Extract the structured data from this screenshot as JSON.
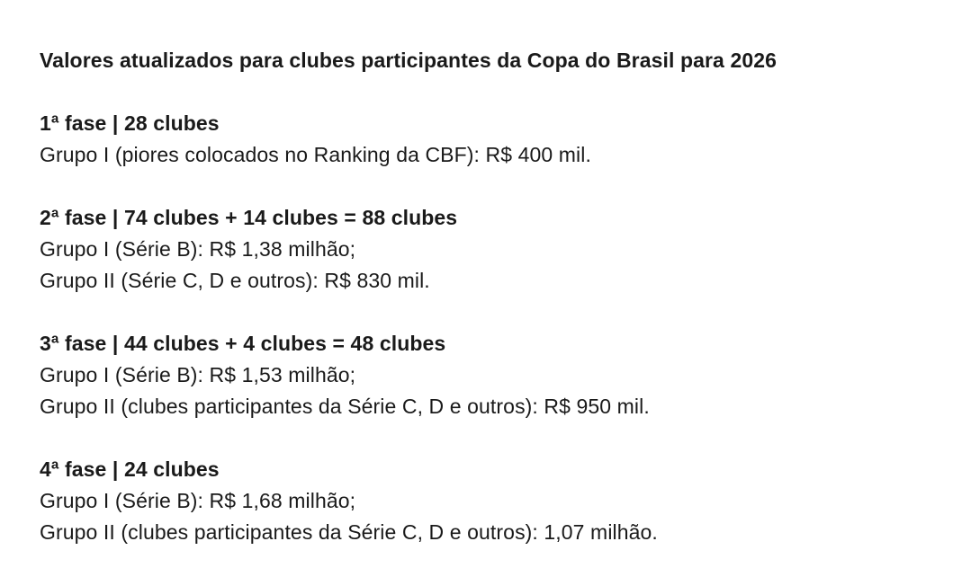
{
  "page": {
    "background_color": "#ffffff",
    "text_color": "#1a1a1a"
  },
  "document": {
    "title": "Valores atualizados para clubes participantes da Copa do Brasil para 2026",
    "sections": [
      {
        "heading": "1ª fase | 28 clubes",
        "lines": [
          "Grupo I (piores colocados no Ranking da CBF): R$ 400 mil."
        ]
      },
      {
        "heading": "2ª fase | 74 clubes + 14 clubes = 88 clubes",
        "lines": [
          "Grupo I (Série B): R$ 1,38 milhão;",
          "Grupo II (Série C, D e outros): R$ 830 mil."
        ]
      },
      {
        "heading": "3ª fase | 44 clubes + 4 clubes = 48 clubes",
        "lines": [
          "Grupo I (Série B): R$ 1,53 milhão;",
          "Grupo II (clubes participantes da Série C, D e outros): R$ 950 mil."
        ]
      },
      {
        "heading": "4ª fase | 24 clubes",
        "lines": [
          "Grupo I (Série B): R$ 1,68 milhão;",
          "Grupo II (clubes participantes da Série C, D e outros): 1,07 milhão."
        ]
      }
    ]
  }
}
